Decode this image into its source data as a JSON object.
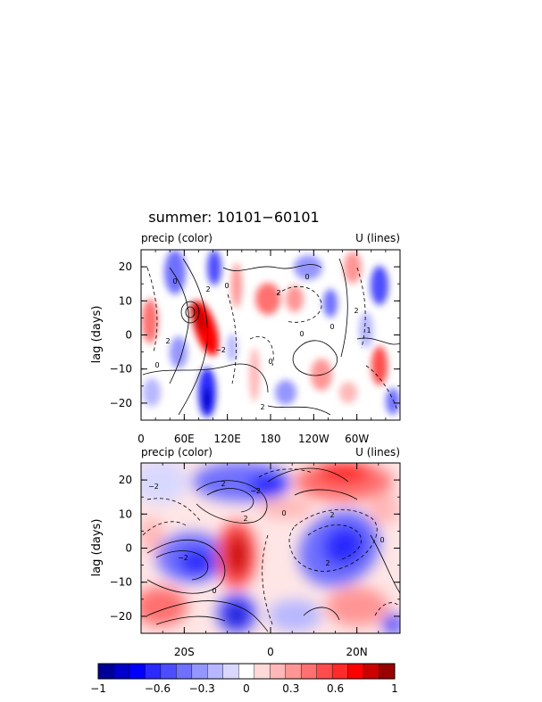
{
  "title": "summer: 10101−60101",
  "colorbar": {
    "ticks": [
      "−1",
      "−0.6",
      "−0.3",
      "0",
      "0.3",
      "0.6",
      "1"
    ],
    "tick_values": [
      -1,
      -0.6,
      -0.3,
      0,
      0.3,
      0.6,
      1
    ],
    "colors": [
      "#000099",
      "#0000cc",
      "#0000ff",
      "#2a2aff",
      "#4d4dff",
      "#7070ff",
      "#9595ff",
      "#b7b7ff",
      "#d8d8ff",
      "#ffffff",
      "#ffd8d8",
      "#ffb7b7",
      "#ff9595",
      "#ff7070",
      "#ff4d4d",
      "#ff2a2a",
      "#ff0000",
      "#cc0000",
      "#990000"
    ]
  },
  "chart_data": [
    {
      "type": "heatmap",
      "left_label": "precip (color)",
      "right_label": "U (lines)",
      "xlabel": "",
      "ylabel": "lag (days)",
      "xticks": [
        "0",
        "60E",
        "120E",
        "180",
        "120W",
        "60W"
      ],
      "xtick_values": [
        0,
        60,
        120,
        180,
        240,
        300
      ],
      "xlim": [
        0,
        360
      ],
      "yticks": [
        "−20",
        "−10",
        "0",
        "10",
        "20"
      ],
      "ytick_values": [
        -20,
        -10,
        0,
        10,
        20
      ],
      "ylim": [
        -25,
        25
      ],
      "contour_labels": [
        "0",
        "2",
        "0",
        "2",
        "0",
        "0",
        "2",
        "0",
        "1",
        "0",
        "−2",
        "2",
        "0",
        "2"
      ]
    },
    {
      "type": "heatmap",
      "left_label": "precip (color)",
      "right_label": "U (lines)",
      "xlabel": "",
      "ylabel": "lag (days)",
      "xticks": [
        "20S",
        "0",
        "20N"
      ],
      "xtick_values": [
        -20,
        0,
        20
      ],
      "xlim": [
        -30,
        30
      ],
      "yticks": [
        "−20",
        "−10",
        "0",
        "10",
        "20"
      ],
      "ytick_values": [
        -20,
        -10,
        0,
        10,
        20
      ],
      "ylim": [
        -25,
        25
      ],
      "contour_labels": [
        "−2",
        "2",
        "−2",
        "0",
        "0",
        "2",
        "2",
        "0",
        "−2",
        "2"
      ]
    }
  ]
}
